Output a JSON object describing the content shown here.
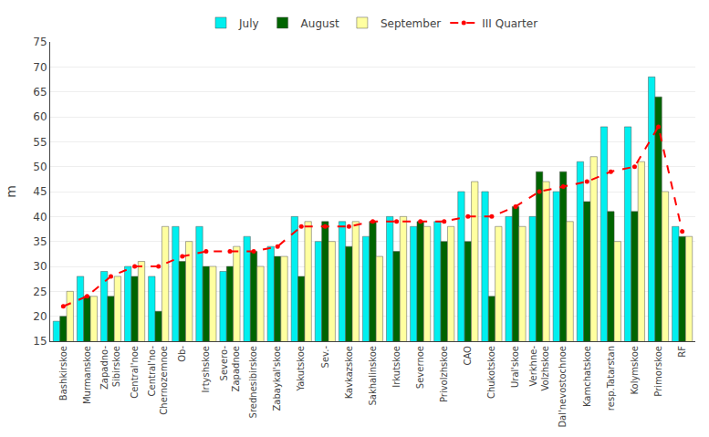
{
  "chart_data": {
    "type": "bar",
    "ylabel": "m",
    "categories": [
      "Bashkirskoe",
      "Murmanskoe",
      "Zapadno-\nSibirskoe",
      "Central'noe",
      "Central'no-\nChernozemnoe",
      "Ob-",
      "Irtyshskoe",
      "Severo-\nZapadnoe",
      "Srednesibirskoe",
      "Zabaykal'skoe",
      "Yakutskoe",
      "Sev.-",
      "Kavkazskoe",
      "Sakhalinskoe",
      "Irkutskoe",
      "Severnoe",
      "Privolzhskoe",
      "CAO",
      "Chukotskoe",
      "Ural'skoe",
      "Verkhne-\nVolzhskoe",
      "Dal'nevostochnoe",
      "Kamchatskoe",
      "resp.Tatarstan",
      "Kolymskoe",
      "Primorskoe",
      "RF"
    ],
    "series": [
      {
        "name": "July",
        "type": "bar",
        "color": "#00EFEF",
        "values": [
          19,
          28,
          29,
          30,
          28,
          38,
          38,
          29,
          36,
          34,
          40,
          35,
          39,
          36,
          40,
          38,
          39,
          45,
          45,
          40,
          40,
          45,
          51,
          58,
          58,
          68,
          38
        ]
      },
      {
        "name": "August",
        "type": "bar",
        "color": "#006400",
        "values": [
          20,
          24,
          24,
          28,
          21,
          31,
          30,
          30,
          33,
          32,
          28,
          39,
          34,
          39,
          33,
          39,
          35,
          35,
          24,
          42,
          49,
          49,
          43,
          41,
          41,
          64,
          36
        ]
      },
      {
        "name": "September",
        "type": "bar",
        "color": "#FFFFA0",
        "values": [
          25,
          24,
          28,
          31,
          38,
          35,
          30,
          34,
          30,
          32,
          39,
          35,
          39,
          32,
          40,
          38,
          38,
          47,
          38,
          38,
          47,
          39,
          52,
          35,
          51,
          45,
          36
        ]
      },
      {
        "name": "III Quarter",
        "type": "line",
        "color": "#FF0000",
        "line_style": "dashed",
        "marker": "circle",
        "values": [
          22,
          24,
          28,
          30,
          30,
          32,
          33,
          33,
          33,
          34,
          38,
          38,
          38,
          39,
          39,
          39,
          39,
          40,
          40,
          42,
          45,
          46,
          47,
          49,
          50,
          58,
          37
        ]
      }
    ],
    "ylim": [
      15,
      75
    ],
    "yticks": [
      15,
      20,
      25,
      30,
      35,
      40,
      45,
      50,
      55,
      60,
      65,
      70,
      75
    ],
    "grid": true,
    "legend": "top"
  }
}
